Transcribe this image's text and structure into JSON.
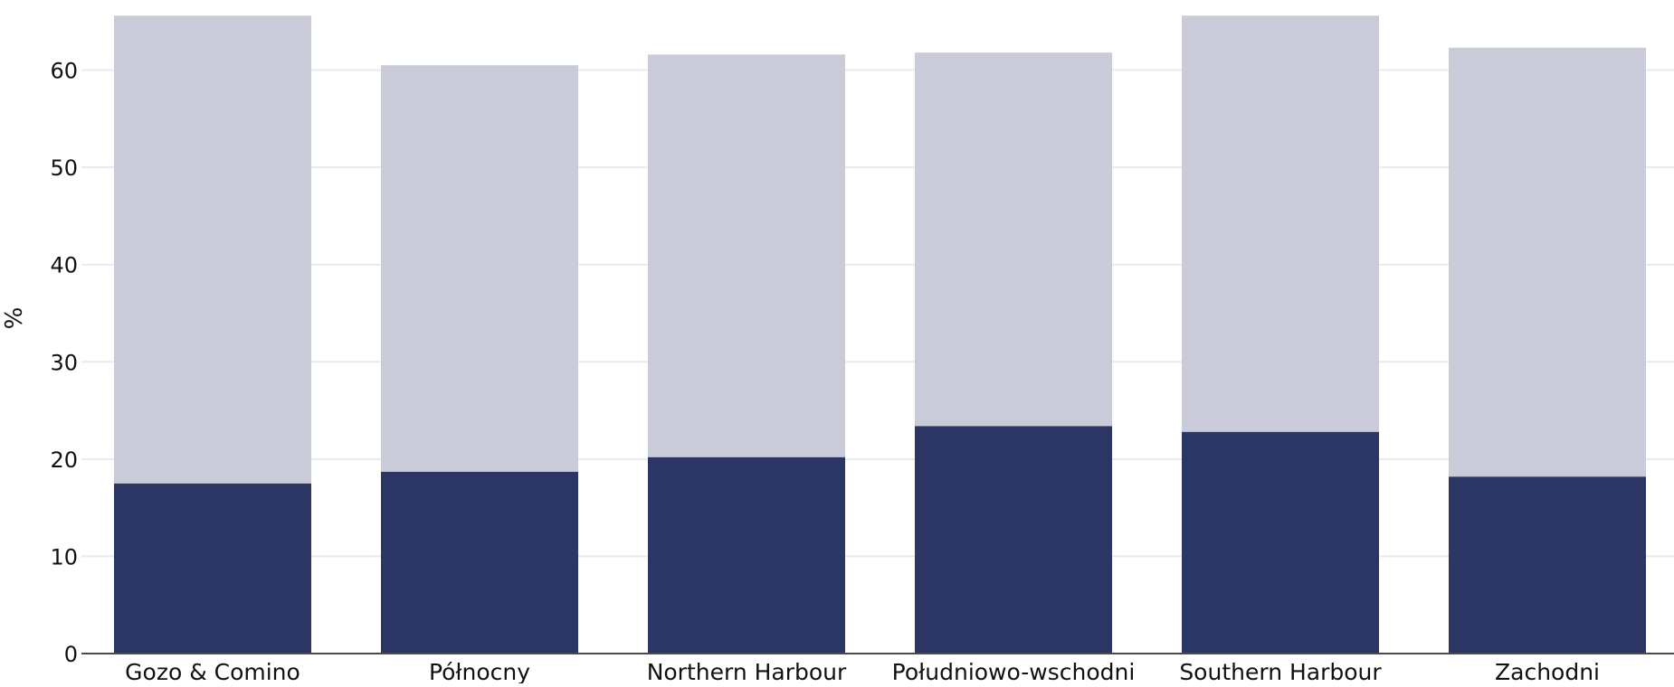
{
  "chart_data": {
    "type": "bar",
    "stacked": true,
    "ylabel": "%",
    "xlabel": "",
    "ylim": [
      0,
      66
    ],
    "y_ticks": [
      0,
      10,
      20,
      30,
      40,
      50,
      60
    ],
    "grid": true,
    "categories": [
      "Gozo & Comino",
      "Północny",
      "Northern Harbour",
      "Południowo-wschodni",
      "Southern Harbour",
      "Zachodni"
    ],
    "series": [
      {
        "values": [
          17.5,
          18.7,
          20.2,
          23.4,
          22.8,
          18.2
        ],
        "color": "#2b3665"
      },
      {
        "values": [
          48.1,
          41.8,
          41.4,
          38.4,
          42.8,
          44.1
        ],
        "color": "#c9cbd9"
      }
    ]
  }
}
